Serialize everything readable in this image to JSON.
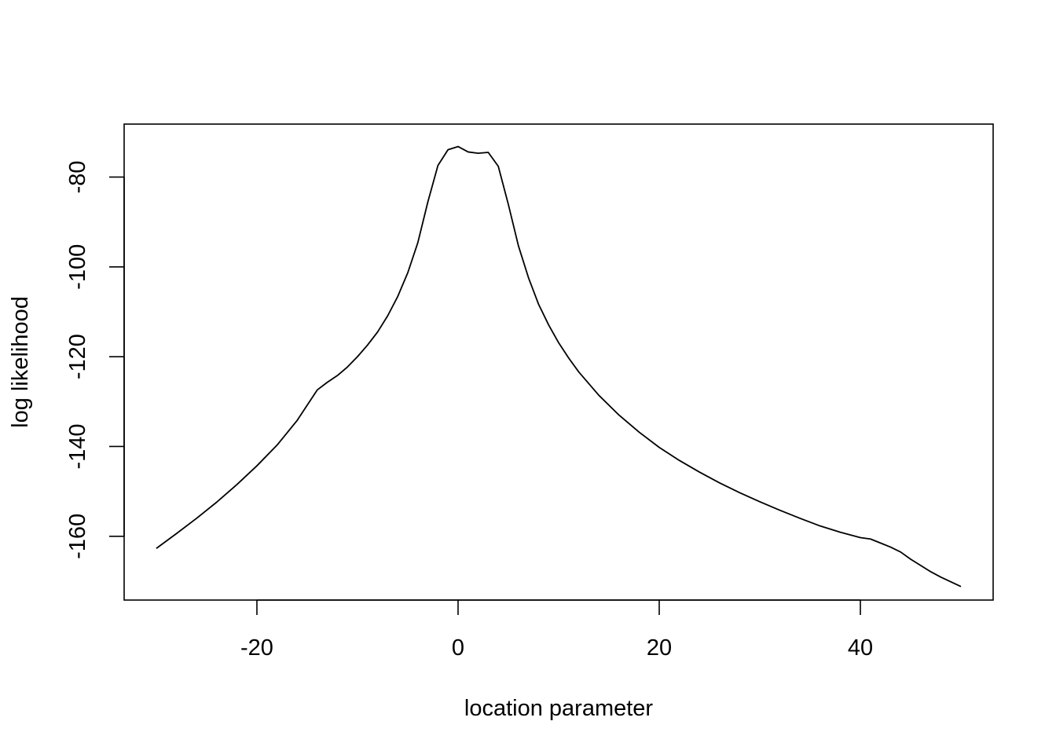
{
  "chart_data": {
    "type": "line",
    "title": "",
    "xlabel": "location parameter",
    "ylabel": "log likelihood",
    "xlim": [
      -33.2,
      53.2
    ],
    "ylim": [
      -174.2,
      -68.2
    ],
    "x_ticks": [
      -20,
      0,
      20,
      40
    ],
    "x_tick_labels": [
      "-20",
      "0",
      "20",
      "40"
    ],
    "y_ticks": [
      -80,
      -100,
      -120,
      -140,
      -160
    ],
    "y_tick_labels": [
      "-80",
      "-100",
      "-120",
      "-140",
      "-160"
    ],
    "grid": false,
    "legend": "none",
    "box": true,
    "series": [
      {
        "x": [
          -30,
          -28,
          -26,
          -24,
          -22,
          -20,
          -18,
          -16,
          -14,
          -13,
          -12,
          -11,
          -10,
          -9,
          -8,
          -7,
          -6,
          -5,
          -4,
          -3,
          -2,
          -1,
          0,
          1,
          2,
          3,
          4,
          5,
          6,
          7,
          8,
          9,
          10,
          11,
          12,
          14,
          16,
          18,
          20,
          22,
          24,
          26,
          28,
          30,
          32,
          34,
          36,
          38,
          40,
          41,
          42,
          43,
          44,
          45,
          46,
          47,
          48,
          50
        ],
        "y": [
          -162.7,
          -159.4,
          -156,
          -152.4,
          -148.5,
          -144.3,
          -139.7,
          -134.2,
          -127.4,
          -125.7,
          -124.2,
          -122.3,
          -120,
          -117.4,
          -114.5,
          -110.9,
          -106.6,
          -101.3,
          -94.6,
          -85.5,
          -77.4,
          -73.9,
          -73.2,
          -74.4,
          -74.7,
          -74.5,
          -77.6,
          -86.1,
          -95.3,
          -102.4,
          -108.3,
          -112.9,
          -116.9,
          -120.3,
          -123.4,
          -128.6,
          -133,
          -136.8,
          -140.2,
          -143.1,
          -145.7,
          -148.1,
          -150.3,
          -152.3,
          -154.2,
          -156,
          -157.7,
          -159.1,
          -160.3,
          -160.6,
          -161.5,
          -162.4,
          -163.5,
          -165.1,
          -166.5,
          -167.9,
          -169.1,
          -171.2
        ]
      }
    ]
  }
}
